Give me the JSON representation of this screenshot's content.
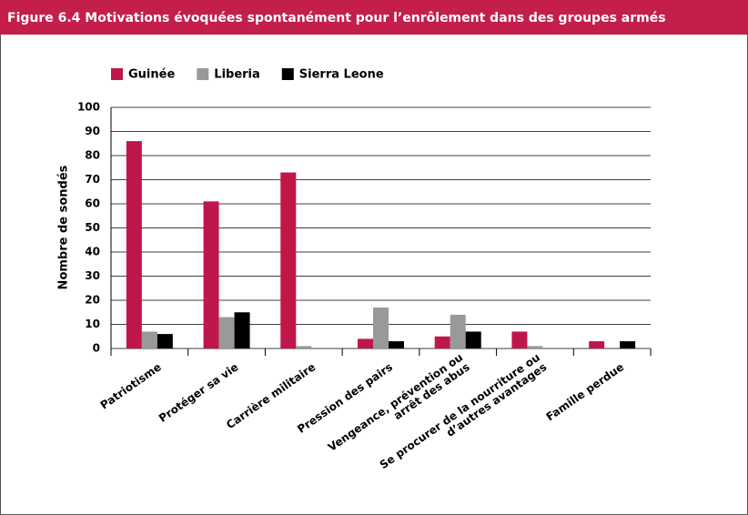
{
  "chart_data": {
    "type": "bar",
    "title": "Figure 6.4  Motivations évoquées spontanément pour l’enrôlement dans des groupes armés",
    "y_label": "Nombre de sondés",
    "categories": [
      "Patriotisme",
      "Protéger sa vie",
      "Carrière militaire",
      "Pression des pairs",
      "Vengeance, prévention ou\narrêt des abus",
      "Se procurer de la nourriture ou\nd’autres avantages",
      "Famille perdue"
    ],
    "series": [
      {
        "name": "Guinée",
        "color": "#c0174a",
        "values": [
          86,
          61,
          73,
          4,
          5,
          7,
          3
        ]
      },
      {
        "name": "Liberia",
        "color": "#999999",
        "values": [
          7,
          13,
          1,
          17,
          14,
          1,
          0
        ]
      },
      {
        "name": "Sierra Leone",
        "color": "#000000",
        "values": [
          6,
          15,
          0,
          3,
          7,
          0,
          3
        ]
      }
    ],
    "ylim": [
      0,
      100
    ],
    "yticks": [
      0,
      10,
      20,
      30,
      40,
      50,
      60,
      70,
      80,
      90,
      100
    ],
    "grid": true,
    "legend": "top"
  }
}
